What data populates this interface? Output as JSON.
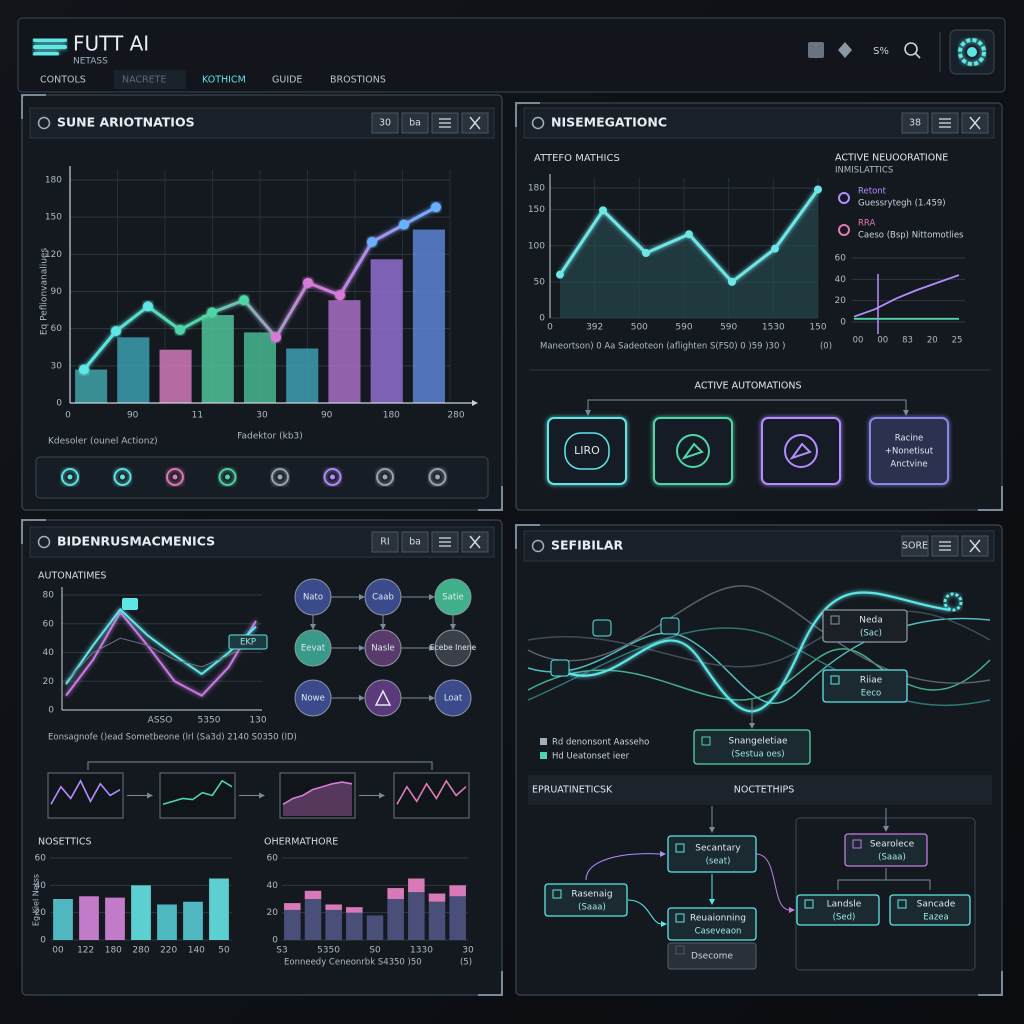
{
  "header": {
    "brand": "FUTT AI",
    "subtitle": "NETASS",
    "nav": [
      "CONTOLS",
      "NACRETE",
      "KOTHICM",
      "GUIDE",
      "BROSTIONS"
    ],
    "badge": "S%",
    "active_nav": 1,
    "accent": "#5ee6e6"
  },
  "panel1": {
    "title": "SUNE ARIOTNATIOS",
    "buttons": [
      "30",
      "ba"
    ],
    "chart": {
      "type": "bar",
      "y_label": "Eq Peflionvanaliues",
      "x_label": "Fadektor (kb3)",
      "caption": "Kdesoler (ounel Actionz)",
      "ylim": [
        0,
        180
      ],
      "yticks": [
        0,
        30,
        60,
        90,
        120,
        150,
        180
      ],
      "x_labels": [
        "0",
        "90",
        "11",
        "30",
        "90",
        "180",
        "280"
      ],
      "bars": {
        "values": [
          27,
          53,
          43,
          71,
          57,
          44,
          83,
          116,
          140
        ],
        "colors": [
          "#3fa3a8",
          "#3b9fb0",
          "#d07ab8",
          "#4fc49a",
          "#46b890",
          "#3d9fb3",
          "#a86fc4",
          "#8f6fcf",
          "#5b84d6"
        ]
      },
      "line": {
        "values": [
          27,
          58,
          78,
          59,
          73,
          83,
          53,
          97,
          87,
          130,
          144,
          158
        ],
        "colors": [
          "#5ee6e6",
          "#4fd6a6",
          "#d77ad8",
          "#6ab0ff"
        ]
      }
    },
    "icons": [
      "#5ee6e6",
      "#5ee6e6",
      "#e07ab8",
      "#4fd6a6",
      "#9aa6b2",
      "#b48cff",
      "#9aa6b2",
      "#9aa6b2"
    ]
  },
  "panel2": {
    "title": "NISEMEGATIONC",
    "buttons": [
      "38"
    ],
    "chart": {
      "type": "area",
      "title": "ATTEFO MATHICS",
      "ylim": [
        0,
        180
      ],
      "yticks": [
        0,
        50,
        100,
        150,
        180
      ],
      "x_labels": [
        "0",
        "392",
        "500",
        "590",
        "590",
        "1530",
        "150"
      ],
      "values": [
        60,
        149,
        90,
        116,
        50,
        96,
        178
      ],
      "color": "#6ee6e6",
      "fill": "#23474d",
      "caption": "Maneortson) 0 Aa Sadeoteon (aflighten S(FS0) 0 )59 )30 )",
      "caption_end": "(0)"
    },
    "legend": {
      "title": "ACTIVE NEUOORATIONE",
      "subtitle": "INMISLATTICS",
      "items": [
        {
          "name": "Retont",
          "detail": "Guessrytegh (1.459)",
          "color": "#b48cff"
        },
        {
          "name": "RRA",
          "detail": "Caeso (Bsp) Nittomotlies",
          "color": "#e07ab8"
        }
      ]
    },
    "mini": {
      "type": "line",
      "ylim": [
        0,
        60
      ],
      "yticks": [
        0,
        20,
        40,
        60
      ],
      "x_labels": [
        "00",
        "00",
        "83",
        "20",
        "25"
      ],
      "series": [
        {
          "color": "#b48cff",
          "values": [
            5,
            12,
            22,
            30,
            37,
            44
          ]
        },
        {
          "color": "#4fd6a6",
          "values": [
            3,
            3,
            3,
            3,
            3
          ]
        }
      ]
    },
    "automations_title": "ACTIVE AUTOMATIONS",
    "tiles": [
      {
        "label": "LIRO",
        "color": "#5ee6e6"
      },
      {
        "color": "#4fd6a6"
      },
      {
        "color": "#b48cff"
      },
      {
        "lines": [
          "Racine",
          "+Nonetisut",
          "Anctvine"
        ],
        "color": "#8a86e8"
      }
    ]
  },
  "panel3": {
    "title": "BIDENRUSMACMENICS",
    "buttons": [
      "RI",
      "ba"
    ],
    "chart": {
      "type": "line",
      "title": "AUTONATIMES",
      "ylim": [
        0,
        80
      ],
      "yticks": [
        0,
        20,
        40,
        60,
        80
      ],
      "x_labels": [
        "ASSO",
        "5350",
        "130"
      ],
      "tag": "EKP",
      "caption": "Eonsagnofe ()ead Sometbeone (lrl (Sa3d) 2140 S0350 (lD)",
      "series": [
        {
          "color": "#c77ae0",
          "values": [
            10,
            35,
            68,
            45,
            20,
            10,
            30,
            62
          ]
        },
        {
          "color": "#5ee6e6",
          "values": [
            18,
            45,
            70,
            52,
            38,
            25,
            40,
            58
          ]
        },
        {
          "color": "#6c7480",
          "values": [
            20,
            40,
            50,
            45,
            35,
            30,
            38,
            48
          ]
        }
      ]
    },
    "nodes": [
      {
        "label": "Nato",
        "color": "#3a4a8a"
      },
      {
        "label": "Caab",
        "color": "#3a4a8a"
      },
      {
        "label": "Satie",
        "color": "#3fb08a"
      },
      {
        "label": "Eevat",
        "color": "#3a9a8a"
      },
      {
        "label": "Nasle",
        "color": "#5a3a6a"
      },
      {
        "label": "Ecebe Inene",
        "color": "#3a3f48"
      },
      {
        "label": "Nowe",
        "color": "#3a4a8a"
      },
      {
        "color": "#5a3a7a"
      },
      {
        "label": "Loat",
        "color": "#3a4a8a"
      }
    ],
    "thumbs": {
      "ylim": [
        0,
        70
      ],
      "items": [
        {
          "color": "#b48cff",
          "values": [
            20,
            50,
            30,
            60,
            25,
            55,
            35,
            45
          ]
        },
        {
          "color": "#4fd6a6",
          "values": [
            20,
            25,
            30,
            28,
            40,
            35,
            60,
            50
          ]
        },
        {
          "color": "#d77ad8",
          "values": [
            20,
            30,
            35,
            45,
            50,
            55,
            58,
            55
          ]
        },
        {
          "color": "#e07ab8",
          "values": [
            20,
            50,
            25,
            55,
            30,
            60,
            35,
            50
          ]
        }
      ]
    },
    "bars": {
      "type": "bar",
      "title": "NOSETTICS",
      "y_label": "Eg Kiel Netss",
      "ylim": [
        0,
        60
      ],
      "yticks": [
        0,
        20,
        40,
        60
      ],
      "x_labels": [
        "00",
        "122",
        "180",
        "280",
        "220",
        "140",
        "50"
      ],
      "values": [
        30,
        32,
        31,
        40,
        26,
        28,
        45
      ],
      "colors": [
        "#4fb8c0",
        "#c27bc8",
        "#c27bc8",
        "#5cd0d0",
        "#4fb8c0",
        "#4fb8c0",
        "#5cd0d0"
      ]
    },
    "stacked": {
      "type": "stacked-bar",
      "title": "OHERMATHORE",
      "ylim": [
        0,
        60
      ],
      "yticks": [
        0,
        20,
        40,
        60
      ],
      "x_labels": [
        "S3",
        "5350",
        "S0",
        "1330",
        "30"
      ],
      "caption": "Eonneedy Ceneonrbk S4350 )50",
      "caption_end": "(5)",
      "series": [
        {
          "color": "#4a4f7a",
          "values": [
            22,
            30,
            22,
            20,
            18,
            30,
            35,
            28,
            32
          ]
        },
        {
          "color": "#d97ab8",
          "values": [
            5,
            6,
            4,
            4,
            0,
            8,
            10,
            6,
            8
          ]
        }
      ]
    }
  },
  "panel4": {
    "title": "SEFIBILAR",
    "buttons": [
      "SORE"
    ],
    "wave_boxes": [
      {
        "title": "Neda",
        "sub": "(Sac)"
      },
      {
        "title": "Riiae",
        "sub": "Eeco"
      },
      {
        "title": "Snangeletiae",
        "sub": "(Sestua oes)"
      }
    ],
    "legend": [
      "Rd denonsont Aasseho",
      "Hd Ueatonset ieer"
    ],
    "band": [
      "EPRUATINETICSK",
      "NOCTETHIPS"
    ],
    "flow": [
      {
        "title": "Secantary",
        "sub": "(seat)"
      },
      {
        "title": "Rasenaig",
        "sub": "(Saaa)"
      },
      {
        "title": "Reuaionning",
        "sub": "Caseveaon"
      },
      {
        "title": "Dsecome"
      },
      {
        "title": "Searolece",
        "sub": "(Saaa)"
      },
      {
        "title": "Landsle",
        "sub": "(Sed)"
      },
      {
        "title": "Sancade",
        "sub": "Eazea"
      }
    ]
  }
}
